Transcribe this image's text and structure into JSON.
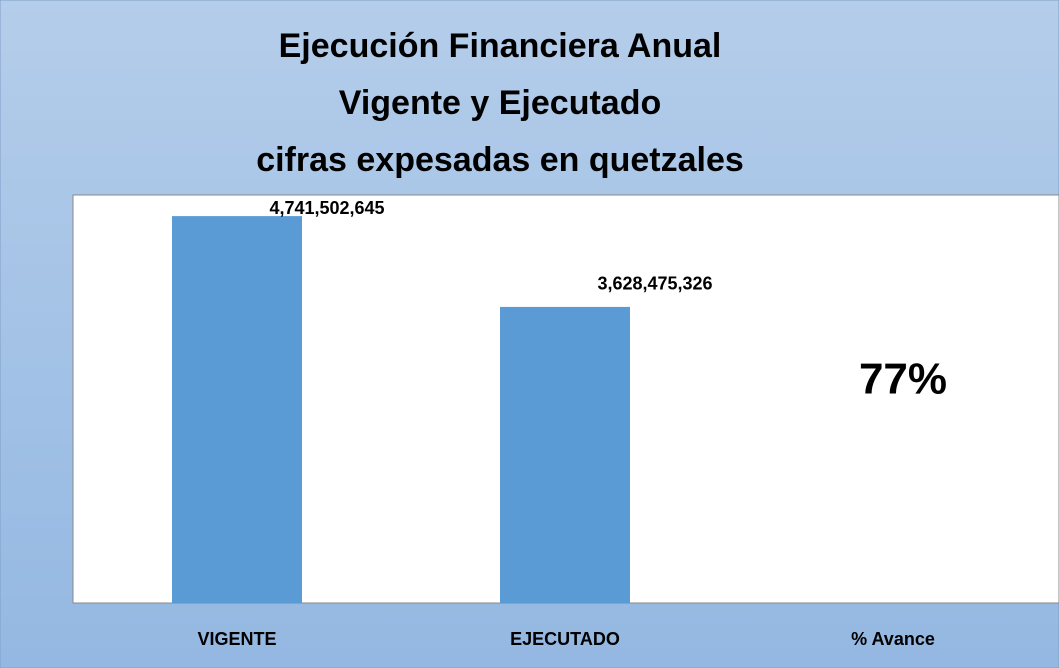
{
  "chart_data": {
    "type": "bar",
    "title": [
      "Ejecución Financiera Anual",
      "Vigente y Ejecutado",
      "cifras expesadas en quetzales"
    ],
    "categories": [
      "VIGENTE",
      "EJECUTADO",
      "% Avance"
    ],
    "values": [
      4741502645,
      3628475326,
      null
    ],
    "value_labels": [
      "4,741,502,645",
      "3,628,475,326",
      null
    ],
    "annotation": "77%",
    "color": "#5b9bd5",
    "ylim": [
      0,
      5000000000
    ]
  }
}
